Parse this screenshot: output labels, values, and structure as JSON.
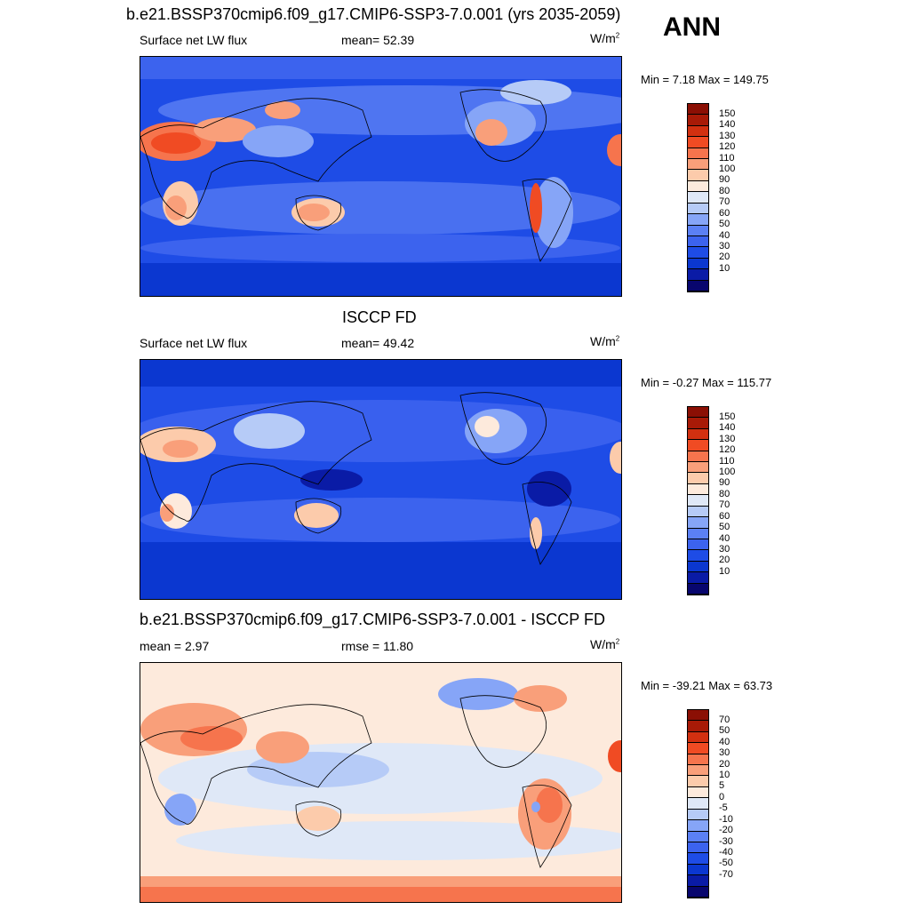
{
  "season": "ANN",
  "colors": {
    "abs_scale": [
      "#08066e",
      "#0a1ba6",
      "#0b37d0",
      "#1e4ce6",
      "#3c63ee",
      "#5b80f4",
      "#86a5f7",
      "#b6cbf7",
      "#dfe8f7",
      "#fdeadc",
      "#fccbab",
      "#f99f7a",
      "#f6744d",
      "#f04b23",
      "#d23010",
      "#a81a07",
      "#8b0f04"
    ],
    "diff_scale": [
      "#08066e",
      "#0a1ba6",
      "#0b37d0",
      "#1e4ce6",
      "#3c63ee",
      "#5b80f4",
      "#86a5f7",
      "#b6cbf7",
      "#dfe8f7",
      "#fdeadc",
      "#fccbab",
      "#f99f7a",
      "#f6744d",
      "#f04b23",
      "#d23010",
      "#a81a07",
      "#8b0f04"
    ],
    "coastline": "#000000"
  },
  "panels": [
    {
      "title": "b.e21.BSSP370cmip6.f09_g17.CMIP6-SSP3-7.0.001 (yrs 2035-2059)",
      "left_label": "Surface net LW flux",
      "center_label": "mean=  52.39",
      "units": "W/m",
      "units_sup": "2",
      "minmax": "Min =   7.18 Max = 149.75",
      "ticks": [
        "150",
        "140",
        "130",
        "120",
        "110",
        "100",
        "90",
        "80",
        "70",
        "60",
        "50",
        "40",
        "30",
        "20",
        "10"
      ]
    },
    {
      "title": "ISCCP FD",
      "left_label": "Surface net LW flux",
      "center_label": "mean=  49.42",
      "units": "W/m",
      "units_sup": "2",
      "minmax": "Min =  -0.27 Max = 115.77",
      "ticks": [
        "150",
        "140",
        "130",
        "120",
        "110",
        "100",
        "90",
        "80",
        "70",
        "60",
        "50",
        "40",
        "30",
        "20",
        "10"
      ]
    },
    {
      "title": "b.e21.BSSP370cmip6.f09_g17.CMIP6-SSP3-7.0.001 - ISCCP FD",
      "left_label": "mean =   2.97",
      "center_label": "rmse =  11.80",
      "units": "W/m",
      "units_sup": "2",
      "minmax": "Min = -39.21 Max =  63.73",
      "ticks": [
        "70",
        "50",
        "40",
        "30",
        "20",
        "10",
        "5",
        "0",
        "-5",
        "-10",
        "-20",
        "-30",
        "-40",
        "-50",
        "-70"
      ]
    }
  ]
}
